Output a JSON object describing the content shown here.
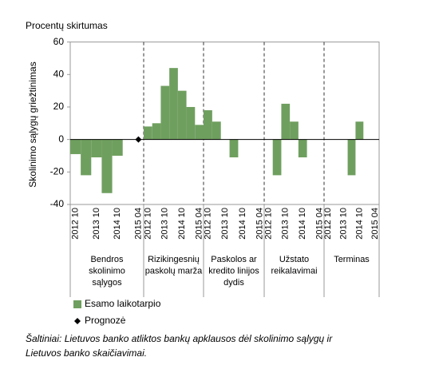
{
  "chart_data": {
    "type": "bar",
    "title": "Procentų skirtumas",
    "y_label": "Skolinimo sąlygų griežtinimas",
    "ylim": [
      -40,
      60
    ],
    "yticks": [
      -40,
      -20,
      0,
      20,
      40,
      60
    ],
    "group_labels": [
      [
        "Bendros",
        "skolinimo",
        "sąlygos"
      ],
      [
        "Rizikingesnių",
        "paskolų marža"
      ],
      [
        "Paskolos ar",
        "kredito linijos",
        "dydis"
      ],
      [
        "Užstato",
        "reikalavimai"
      ],
      [
        "Terminas"
      ]
    ],
    "categories": [
      "2012 10",
      null,
      "2013 10",
      null,
      "2014 10",
      null,
      "2015 04",
      "2012 10",
      null,
      "2013 10",
      null,
      "2014 10",
      null,
      "2015 04",
      "2012 10",
      null,
      "2013 10",
      null,
      "2014 10",
      null,
      "2015 04",
      "2012 10",
      null,
      "2013 10",
      null,
      "2014 10",
      null,
      "2015 04",
      "2012 10",
      null,
      "2013 10",
      null,
      "2014 10",
      null,
      "2015 04"
    ],
    "series": [
      {
        "name": "Esamo laikotarpio",
        "color": "#6f9f5f",
        "marker": "bar",
        "values": [
          -9,
          -22,
          -11,
          -33,
          -10,
          null,
          null,
          8,
          10,
          33,
          44,
          30,
          20,
          9,
          18,
          11,
          null,
          -11,
          null,
          null,
          null,
          null,
          -22,
          22,
          11,
          -11,
          null,
          null,
          null,
          null,
          null,
          -22,
          11,
          null,
          null
        ]
      },
      {
        "name": "Prognozė",
        "color": "#000000",
        "marker": "diamond",
        "values": [
          null,
          null,
          null,
          null,
          null,
          null,
          0,
          null,
          null,
          null,
          null,
          null,
          null,
          null,
          null,
          null,
          null,
          null,
          null,
          null,
          null,
          null,
          null,
          null,
          null,
          null,
          null,
          null,
          null,
          null,
          null,
          null,
          null,
          null,
          null
        ]
      }
    ],
    "source": [
      "Šaltiniai: Lietuvos banko atliktos bankų apklausos dėl skolinimo sąlygų ir",
      "Lietuvos banko skaičiavimai."
    ]
  }
}
